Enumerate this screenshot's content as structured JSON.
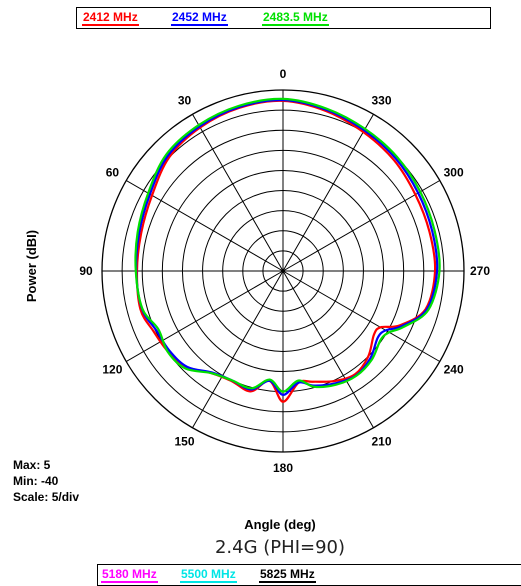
{
  "chart_data": [
    {
      "type": "polar-line",
      "title": "2.4G (PHI=90)",
      "xlabel": "Angle (deg)",
      "ylabel": "Power (dBI)",
      "rlim": [
        -40,
        5
      ],
      "scale": "5/div",
      "stats": {
        "max": "Max: 5",
        "min": "Min: -40",
        "scale": "Scale: 5/div"
      },
      "angle_ticks": [
        "0",
        "30",
        "60",
        "90",
        "120",
        "150",
        "180",
        "210",
        "240",
        "270",
        "300",
        "330"
      ],
      "angle_direction": "counter-clockwise, 0 at top",
      "grid": true,
      "series": [
        {
          "name": "2412 MHz",
          "color": "#ff0000",
          "points": [
            [
              0,
              2.3
            ],
            [
              15,
              2.0
            ],
            [
              30,
              1.2
            ],
            [
              45,
              0.0
            ],
            [
              60,
              -2.4
            ],
            [
              75,
              -3.5
            ],
            [
              90,
              -3.7
            ],
            [
              105,
              -3.3
            ],
            [
              115,
              -4.5
            ],
            [
              125,
              -5.1
            ],
            [
              135,
              -6.2
            ],
            [
              145,
              -9.0
            ],
            [
              155,
              -9.8
            ],
            [
              165,
              -9.0
            ],
            [
              173,
              -12.5
            ],
            [
              180,
              -7.5
            ],
            [
              188,
              -12.0
            ],
            [
              195,
              -11.5
            ],
            [
              205,
              -9.8
            ],
            [
              215,
              -8.7
            ],
            [
              225,
              -10.0
            ],
            [
              235,
              -12.4
            ],
            [
              240,
              -12.0
            ],
            [
              245,
              -8.0
            ],
            [
              255,
              -3.3
            ],
            [
              270,
              -2.2
            ],
            [
              285,
              -2.3
            ],
            [
              300,
              -2.0
            ],
            [
              315,
              -1.0
            ],
            [
              330,
              -0.1
            ],
            [
              345,
              1.2
            ]
          ]
        },
        {
          "name": "2452 MHz",
          "color": "#0000ff",
          "points": [
            [
              0,
              2.5
            ],
            [
              15,
              2.2
            ],
            [
              30,
              1.5
            ],
            [
              45,
              0.5
            ],
            [
              60,
              -1.8
            ],
            [
              75,
              -3.0
            ],
            [
              90,
              -3.5
            ],
            [
              105,
              -3.7
            ],
            [
              115,
              -5.2
            ],
            [
              125,
              -5.5
            ],
            [
              135,
              -6.3
            ],
            [
              145,
              -9.2
            ],
            [
              155,
              -10.0
            ],
            [
              165,
              -9.5
            ],
            [
              173,
              -12.5
            ],
            [
              180,
              -9.2
            ],
            [
              188,
              -12.0
            ],
            [
              195,
              -10.5
            ],
            [
              205,
              -9.2
            ],
            [
              215,
              -8.3
            ],
            [
              225,
              -9.3
            ],
            [
              235,
              -11.2
            ],
            [
              240,
              -10.5
            ],
            [
              245,
              -7.5
            ],
            [
              255,
              -3.0
            ],
            [
              270,
              -1.7
            ],
            [
              285,
              -1.6
            ],
            [
              300,
              -1.2
            ],
            [
              315,
              -0.4
            ],
            [
              330,
              0.4
            ],
            [
              345,
              1.5
            ]
          ]
        },
        {
          "name": "2483.5 MHz",
          "color": "#00e000",
          "points": [
            [
              0,
              2.8
            ],
            [
              15,
              2.5
            ],
            [
              30,
              1.9
            ],
            [
              45,
              1.0
            ],
            [
              60,
              -1.3
            ],
            [
              75,
              -2.6
            ],
            [
              90,
              -3.4
            ],
            [
              105,
              -3.8
            ],
            [
              115,
              -5.8
            ],
            [
              125,
              -5.0
            ],
            [
              135,
              -5.7
            ],
            [
              145,
              -9.0
            ],
            [
              155,
              -10.0
            ],
            [
              165,
              -9.8
            ],
            [
              173,
              -12.8
            ],
            [
              180,
              -10.0
            ],
            [
              188,
              -12.5
            ],
            [
              195,
              -10.2
            ],
            [
              205,
              -8.8
            ],
            [
              215,
              -8.2
            ],
            [
              225,
              -8.8
            ],
            [
              235,
              -10.3
            ],
            [
              240,
              -9.5
            ],
            [
              245,
              -7.0
            ],
            [
              255,
              -2.6
            ],
            [
              270,
              -1.1
            ],
            [
              285,
              -1.0
            ],
            [
              300,
              -0.6
            ],
            [
              315,
              0.1
            ],
            [
              330,
              0.8
            ],
            [
              345,
              1.8
            ]
          ]
        }
      ]
    },
    {
      "type": "polar-line",
      "title": "",
      "series": [
        {
          "name": "5180 MHz",
          "color": "#ff00ff",
          "points": []
        },
        {
          "name": "5500 MHz",
          "color": "#00ffff",
          "points": []
        },
        {
          "name": "5825 MHz",
          "color": "#000000",
          "points": []
        }
      ]
    }
  ]
}
